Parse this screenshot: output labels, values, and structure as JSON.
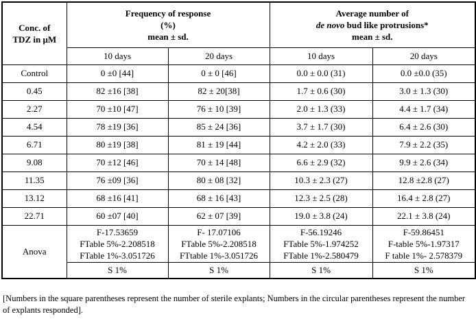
{
  "table": {
    "conc_header": {
      "line1": "Conc. of",
      "line2": "TDZ in μM"
    },
    "group_frequency": {
      "line1": "Frequency of response",
      "line2": "(%)",
      "line3": "mean ± sd."
    },
    "group_average": {
      "line1": "Average number of",
      "line2_italic": "de novo",
      "line2_rest": " bud like protrusions*",
      "line3": "mean ± sd."
    },
    "subheaders": [
      "10 days",
      "20 days",
      "10 days",
      "20 days"
    ],
    "rows": [
      {
        "label": "Control",
        "values": [
          "0 ±0 [44]",
          "0 ± 0 [46]",
          "0.0 ± 0.0 (31)",
          "0.0 ±0.0 (35)"
        ]
      },
      {
        "label": "0.45",
        "values": [
          "82 ±16 [38]",
          "82 ± 20[38]",
          "1.7 ± 0.6 (30)",
          "3.0 ± 1.3 (30)"
        ]
      },
      {
        "label": "2.27",
        "values": [
          "70 ±10 [47]",
          "76 ± 10 [39]",
          "2.0 ± 1.3 (33)",
          "4.4 ± 1.7 (34)"
        ]
      },
      {
        "label": "4.54",
        "values": [
          "78 ±19 [36]",
          "85 ± 24 [36]",
          "3.7 ± 1.7 (30)",
          "6.4 ± 2.6 (30)"
        ]
      },
      {
        "label": "6.71",
        "values": [
          "80 ±19 [38]",
          "81 ± 19 [44]",
          "4.2 ± 2.0 (33)",
          "7.9 ± 2.2 (35)"
        ]
      },
      {
        "label": "9.08",
        "values": [
          "70 ±12 [46]",
          "70 ± 14 [48]",
          "6.6 ± 2.9 (32)",
          "9.9 ± 2.6 (34)"
        ]
      },
      {
        "label": "11.35",
        "values": [
          "76 ±09 [36]",
          "80 ± 08 [32]",
          "10.3 ± 2.3 (27)",
          "12.8 ±2.8 (27)"
        ]
      },
      {
        "label": "13.12",
        "values": [
          "68 ±16 [41]",
          "68 ± 16 [43]",
          "12.3 ± 2.5 (28)",
          "16.4 ± 2.8 (27)"
        ]
      },
      {
        "label": "22.71",
        "values": [
          "60 ±07 [40]",
          "62 ± 07 [39]",
          "19.0 ± 3.8 (24)",
          "22.1 ± 3.8 (24)"
        ]
      }
    ],
    "anova": {
      "label": "Anova",
      "stats": [
        [
          "F-17.53659",
          "FTable 5%-2.208518",
          "FTable 1%-3.051726"
        ],
        [
          "F- 17.07106",
          "FTable 5%-2.208518",
          "FTtable 1%-3.051726"
        ],
        [
          "F-56.19246",
          "FTable 5%-1.974252",
          "FTable 1%-2.580479"
        ],
        [
          "F-59.86451",
          "F-table 5%-1.97317",
          "F table 1%- 2.578379"
        ]
      ],
      "significance": [
        "S 1%",
        "S 1%",
        "S 1%",
        "S 1%"
      ]
    }
  },
  "footnote": "[Numbers in the square parentheses represent the number of sterile explants; Numbers in the circular parentheses represent the number of explants responded]."
}
